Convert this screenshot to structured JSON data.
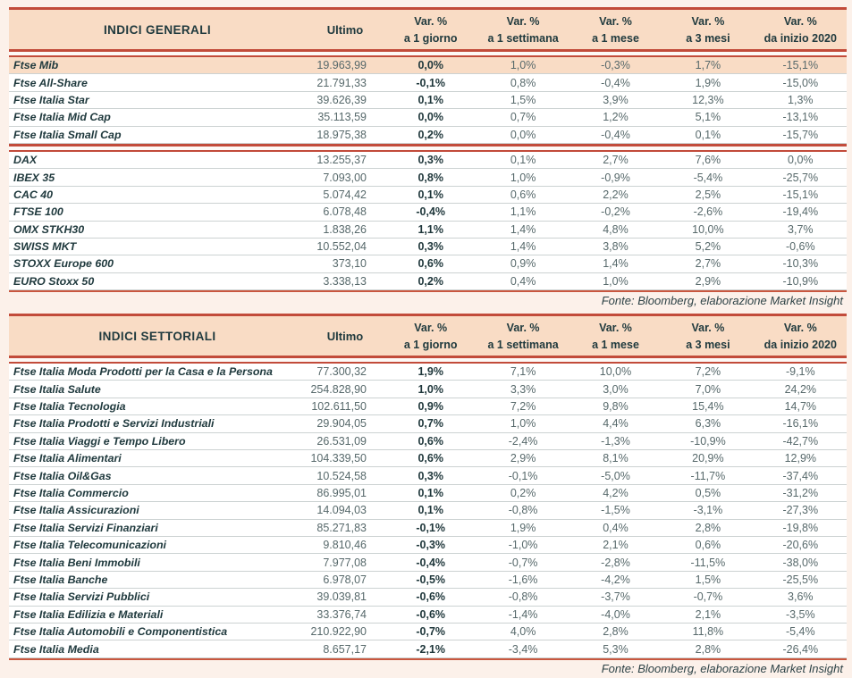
{
  "page": {
    "background_color": "#fcf1ea",
    "accent_red": "#c24b3a",
    "header_fill": "#f9dcc5"
  },
  "tables": [
    {
      "header": {
        "title": "INDICI GENERALI",
        "ultimo": "Ultimo",
        "var_label": "Var. %",
        "periods": [
          "a 1 giorno",
          "a 1 settimana",
          "a 1 mese",
          "a 3 mesi",
          "da inizio 2020"
        ]
      },
      "groups": [
        {
          "rows": [
            {
              "label": "Ftse Mib",
              "highlight": true,
              "ultimo": "19.963,99",
              "vars": [
                "0,0%",
                "1,0%",
                "-0,3%",
                "1,7%",
                "-15,1%"
              ]
            },
            {
              "label": "Ftse All-Share",
              "ultimo": "21.791,33",
              "vars": [
                "-0,1%",
                "0,8%",
                "-0,4%",
                "1,9%",
                "-15,0%"
              ]
            },
            {
              "label": "Ftse Italia Star",
              "ultimo": "39.626,39",
              "vars": [
                "0,1%",
                "1,5%",
                "3,9%",
                "12,3%",
                "1,3%"
              ]
            },
            {
              "label": "Ftse Italia Mid Cap",
              "ultimo": "35.113,59",
              "vars": [
                "0,0%",
                "0,7%",
                "1,2%",
                "5,1%",
                "-13,1%"
              ]
            },
            {
              "label": "Ftse Italia Small Cap",
              "ultimo": "18.975,38",
              "vars": [
                "0,2%",
                "0,0%",
                "-0,4%",
                "0,1%",
                "-15,7%"
              ]
            }
          ]
        },
        {
          "rows": [
            {
              "label": "DAX",
              "ultimo": "13.255,37",
              "vars": [
                "0,3%",
                "0,1%",
                "2,7%",
                "7,6%",
                "0,0%"
              ]
            },
            {
              "label": "IBEX 35",
              "ultimo": "7.093,00",
              "vars": [
                "0,8%",
                "1,0%",
                "-0,9%",
                "-5,4%",
                "-25,7%"
              ]
            },
            {
              "label": "CAC 40",
              "ultimo": "5.074,42",
              "vars": [
                "0,1%",
                "0,6%",
                "2,2%",
                "2,5%",
                "-15,1%"
              ]
            },
            {
              "label": "FTSE 100",
              "ultimo": "6.078,48",
              "vars": [
                "-0,4%",
                "1,1%",
                "-0,2%",
                "-2,6%",
                "-19,4%"
              ]
            },
            {
              "label": "OMX STKH30",
              "ultimo": "1.838,26",
              "vars": [
                "1,1%",
                "1,4%",
                "4,8%",
                "10,0%",
                "3,7%"
              ]
            },
            {
              "label": "SWISS MKT",
              "ultimo": "10.552,04",
              "vars": [
                "0,3%",
                "1,4%",
                "3,8%",
                "5,2%",
                "-0,6%"
              ]
            },
            {
              "label": "STOXX Europe 600",
              "ultimo": "373,10",
              "vars": [
                "0,6%",
                "0,9%",
                "1,4%",
                "2,7%",
                "-10,3%"
              ]
            },
            {
              "label": "EURO Stoxx 50",
              "ultimo": "3.338,13",
              "vars": [
                "0,2%",
                "0,4%",
                "1,0%",
                "2,9%",
                "-10,9%"
              ]
            }
          ]
        }
      ],
      "fonte": "Fonte: Bloomberg, elaborazione Market Insight"
    },
    {
      "header": {
        "title": "INDICI SETTORIALI",
        "ultimo": "Ultimo",
        "var_label": "Var. %",
        "periods": [
          "a 1 giorno",
          "a 1 settimana",
          "a 1 mese",
          "a 3 mesi",
          "da inizio 2020"
        ]
      },
      "groups": [
        {
          "rows": [
            {
              "label": "Ftse Italia Moda Prodotti per la Casa e la Persona",
              "ultimo": "77.300,32",
              "vars": [
                "1,9%",
                "7,1%",
                "10,0%",
                "7,2%",
                "-9,1%"
              ]
            },
            {
              "label": "Ftse Italia Salute",
              "ultimo": "254.828,90",
              "vars": [
                "1,0%",
                "3,3%",
                "3,0%",
                "7,0%",
                "24,2%"
              ]
            },
            {
              "label": "Ftse Italia Tecnologia",
              "ultimo": "102.611,50",
              "vars": [
                "0,9%",
                "7,2%",
                "9,8%",
                "15,4%",
                "14,7%"
              ]
            },
            {
              "label": "Ftse Italia Prodotti e Servizi Industriali",
              "ultimo": "29.904,05",
              "vars": [
                "0,7%",
                "1,0%",
                "4,4%",
                "6,3%",
                "-16,1%"
              ]
            },
            {
              "label": "Ftse Italia Viaggi e Tempo Libero",
              "ultimo": "26.531,09",
              "vars": [
                "0,6%",
                "-2,4%",
                "-1,3%",
                "-10,9%",
                "-42,7%"
              ]
            },
            {
              "label": "Ftse Italia Alimentari",
              "ultimo": "104.339,50",
              "vars": [
                "0,6%",
                "2,9%",
                "8,1%",
                "20,9%",
                "12,9%"
              ]
            },
            {
              "label": "Ftse Italia Oil&Gas",
              "ultimo": "10.524,58",
              "vars": [
                "0,3%",
                "-0,1%",
                "-5,0%",
                "-11,7%",
                "-37,4%"
              ]
            },
            {
              "label": "Ftse Italia Commercio",
              "ultimo": "86.995,01",
              "vars": [
                "0,1%",
                "0,2%",
                "4,2%",
                "0,5%",
                "-31,2%"
              ]
            },
            {
              "label": "Ftse Italia Assicurazioni",
              "ultimo": "14.094,03",
              "vars": [
                "0,1%",
                "-0,8%",
                "-1,5%",
                "-3,1%",
                "-27,3%"
              ]
            },
            {
              "label": "Ftse Italia Servizi Finanziari",
              "ultimo": "85.271,83",
              "vars": [
                "-0,1%",
                "1,9%",
                "0,4%",
                "2,8%",
                "-19,8%"
              ]
            },
            {
              "label": "Ftse Italia Telecomunicazioni",
              "ultimo": "9.810,46",
              "vars": [
                "-0,3%",
                "-1,0%",
                "2,1%",
                "0,6%",
                "-20,6%"
              ]
            },
            {
              "label": "Ftse Italia Beni Immobili",
              "ultimo": "7.977,08",
              "vars": [
                "-0,4%",
                "-0,7%",
                "-2,8%",
                "-11,5%",
                "-38,0%"
              ]
            },
            {
              "label": "Ftse Italia Banche",
              "ultimo": "6.978,07",
              "vars": [
                "-0,5%",
                "-1,6%",
                "-4,2%",
                "1,5%",
                "-25,5%"
              ]
            },
            {
              "label": "Ftse Italia Servizi Pubblici",
              "ultimo": "39.039,81",
              "vars": [
                "-0,6%",
                "-0,8%",
                "-3,7%",
                "-0,7%",
                "3,6%"
              ]
            },
            {
              "label": "Ftse Italia Edilizia e Materiali",
              "ultimo": "33.376,74",
              "vars": [
                "-0,6%",
                "-1,4%",
                "-4,0%",
                "2,1%",
                "-3,5%"
              ]
            },
            {
              "label": "Ftse Italia Automobili e Componentistica",
              "ultimo": "210.922,90",
              "vars": [
                "-0,7%",
                "4,0%",
                "2,8%",
                "11,8%",
                "-5,4%"
              ]
            },
            {
              "label": "Ftse Italia Media",
              "ultimo": "8.657,17",
              "vars": [
                "-2,1%",
                "-3,4%",
                "5,3%",
                "2,8%",
                "-26,4%"
              ]
            }
          ]
        }
      ],
      "fonte": "Fonte: Bloomberg, elaborazione Market Insight"
    }
  ]
}
